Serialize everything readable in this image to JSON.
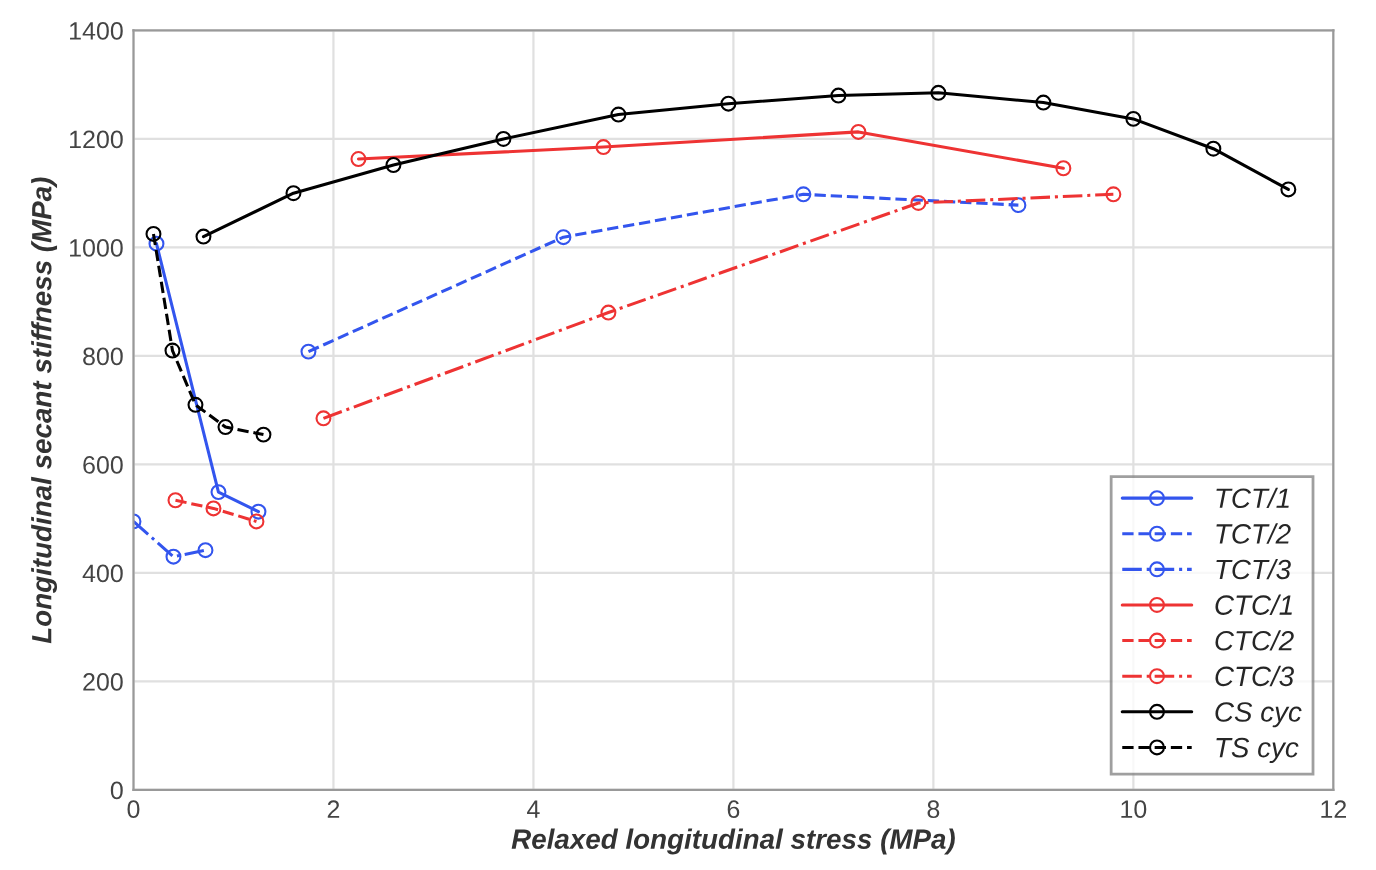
{
  "chart_data": {
    "type": "line",
    "xlabel": "Relaxed longitudinal stress (MPa)",
    "ylabel": "Longitudinal secant stiffness (MPa)",
    "xlim": [
      0,
      12
    ],
    "xticks": [
      0,
      2,
      4,
      6,
      8,
      10,
      12
    ],
    "ylim": [
      0,
      1400
    ],
    "yticks": [
      0,
      200,
      400,
      600,
      800,
      1000,
      1200,
      1400
    ],
    "grid": true,
    "legend": "bottom right",
    "marker": "circle",
    "series": [
      {
        "name": "TCT/1",
        "color": "#3355ee",
        "line_style": "solid",
        "x": [
          0.23,
          0.85,
          1.25
        ],
        "values": [
          1007,
          549,
          513
        ]
      },
      {
        "name": "TCT/2",
        "color": "#3355ee",
        "line_style": "dashed",
        "x": [
          1.75,
          4.3,
          6.7,
          8.85
        ],
        "values": [
          808,
          1019,
          1098,
          1078
        ]
      },
      {
        "name": "TCT/3",
        "color": "#3355ee",
        "line_style": "dashdot",
        "x": [
          0.0,
          0.4,
          0.72
        ],
        "values": [
          495,
          430,
          442
        ]
      },
      {
        "name": "CTC/1",
        "color": "#ee3333",
        "line_style": "solid",
        "x": [
          2.25,
          4.7,
          7.25,
          9.3
        ],
        "values": [
          1163,
          1185,
          1213,
          1146
        ]
      },
      {
        "name": "CTC/2",
        "color": "#ee3333",
        "line_style": "dashed",
        "x": [
          0.42,
          0.8,
          1.23
        ],
        "values": [
          534,
          519,
          495
        ]
      },
      {
        "name": "CTC/3",
        "color": "#ee3333",
        "line_style": "dashdot",
        "x": [
          1.9,
          4.75,
          7.85,
          9.8
        ],
        "values": [
          685,
          880,
          1082,
          1098
        ]
      },
      {
        "name": "CS cyc",
        "color": "#000000",
        "line_style": "solid",
        "x": [
          0.7,
          1.6,
          2.6,
          3.7,
          4.85,
          5.95,
          7.05,
          8.05,
          9.1,
          10.0,
          10.8,
          11.55
        ],
        "values": [
          1020,
          1100,
          1152,
          1200,
          1245,
          1265,
          1280,
          1285,
          1267,
          1237,
          1182,
          1107
        ]
      },
      {
        "name": "TS cyc",
        "color": "#000000",
        "line_style": "dashed",
        "x": [
          0.2,
          0.39,
          0.62,
          0.92,
          1.3
        ],
        "values": [
          1025,
          810,
          710,
          669,
          655
        ]
      }
    ]
  }
}
